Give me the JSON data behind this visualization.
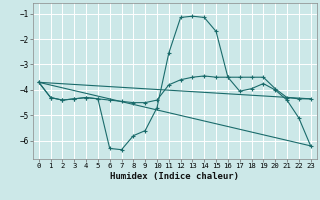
{
  "xlabel": "Humidex (Indice chaleur)",
  "ylabel": "",
  "bg_color": "#cce8e8",
  "grid_color": "#ffffff",
  "line_color": "#1a6b6b",
  "xlim": [
    -0.5,
    23.5
  ],
  "ylim": [
    -6.7,
    -0.6
  ],
  "yticks": [
    -1,
    -2,
    -3,
    -4,
    -5,
    -6
  ],
  "xticks": [
    0,
    1,
    2,
    3,
    4,
    5,
    6,
    7,
    8,
    9,
    10,
    11,
    12,
    13,
    14,
    15,
    16,
    17,
    18,
    19,
    20,
    21,
    22,
    23
  ],
  "series": [
    {
      "x": [
        0,
        1,
        2,
        3,
        4,
        5,
        6,
        7,
        8,
        9,
        10,
        11,
        12,
        13,
        14,
        15,
        16,
        17,
        18,
        19,
        20,
        21,
        22,
        23
      ],
      "y": [
        -3.7,
        -4.3,
        -4.4,
        -4.35,
        -4.3,
        -4.35,
        -6.3,
        -6.35,
        -5.8,
        -5.6,
        -4.7,
        -2.55,
        -1.15,
        -1.1,
        -1.15,
        -1.7,
        -3.5,
        -4.05,
        -3.95,
        -3.75,
        -4.0,
        -4.4,
        -5.1,
        -6.2
      ]
    },
    {
      "x": [
        0,
        1,
        2,
        3,
        4,
        5,
        6,
        7,
        8,
        9,
        10,
        11,
        12,
        13,
        14,
        15,
        16,
        17,
        18,
        19,
        20,
        21,
        22,
        23
      ],
      "y": [
        -3.7,
        -4.3,
        -4.4,
        -4.35,
        -4.3,
        -4.35,
        -4.4,
        -4.45,
        -4.5,
        -4.5,
        -4.4,
        -3.8,
        -3.6,
        -3.5,
        -3.45,
        -3.5,
        -3.5,
        -3.5,
        -3.5,
        -3.5,
        -3.95,
        -4.3,
        -4.35,
        -4.35
      ]
    },
    {
      "x": [
        0,
        23
      ],
      "y": [
        -3.7,
        -4.35
      ]
    },
    {
      "x": [
        0,
        23
      ],
      "y": [
        -3.7,
        -6.2
      ]
    }
  ]
}
